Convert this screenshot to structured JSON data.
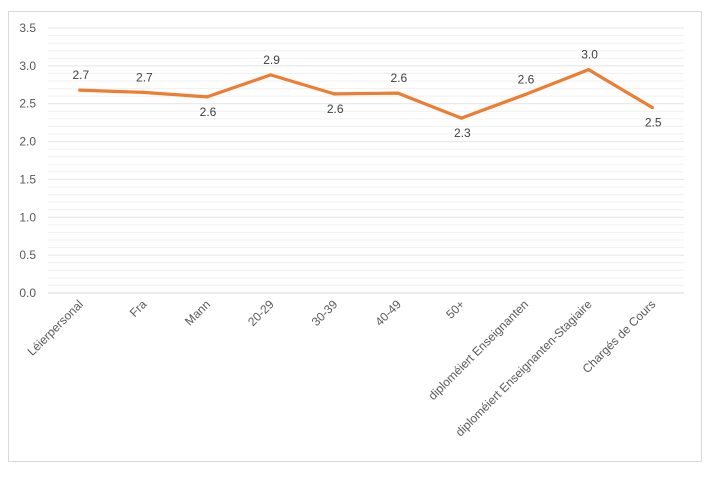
{
  "chart_data": {
    "type": "line",
    "title": "",
    "xlabel": "",
    "ylabel": "",
    "categories": [
      "Léierpersonal",
      "Fra",
      "Mann",
      "20-29",
      "30-39",
      "40-49",
      "50+",
      "diploméiert Enseignanten",
      "diploméiert Enseignanten-Stagiaire",
      "Chargés de Cours"
    ],
    "series": [
      {
        "values": [
          2.68,
          2.65,
          2.59,
          2.88,
          2.63,
          2.64,
          2.31,
          2.62,
          2.95,
          2.45
        ],
        "labels": [
          "2.7",
          "2.7",
          "2.6",
          "2.9",
          "2.6",
          "2.6",
          "2.3",
          "2.6",
          "3.0",
          "2.5"
        ],
        "label_positions": [
          "above",
          "above",
          "below",
          "above",
          "below",
          "above",
          "below",
          "above",
          "above",
          "below"
        ],
        "color": "#ED7D31"
      }
    ],
    "yticks": [
      "0.0",
      "0.5",
      "1.0",
      "1.5",
      "2.0",
      "2.5",
      "3.0",
      "3.5"
    ],
    "ylim": [
      0,
      3.5
    ],
    "grid": true,
    "legend": "none"
  }
}
